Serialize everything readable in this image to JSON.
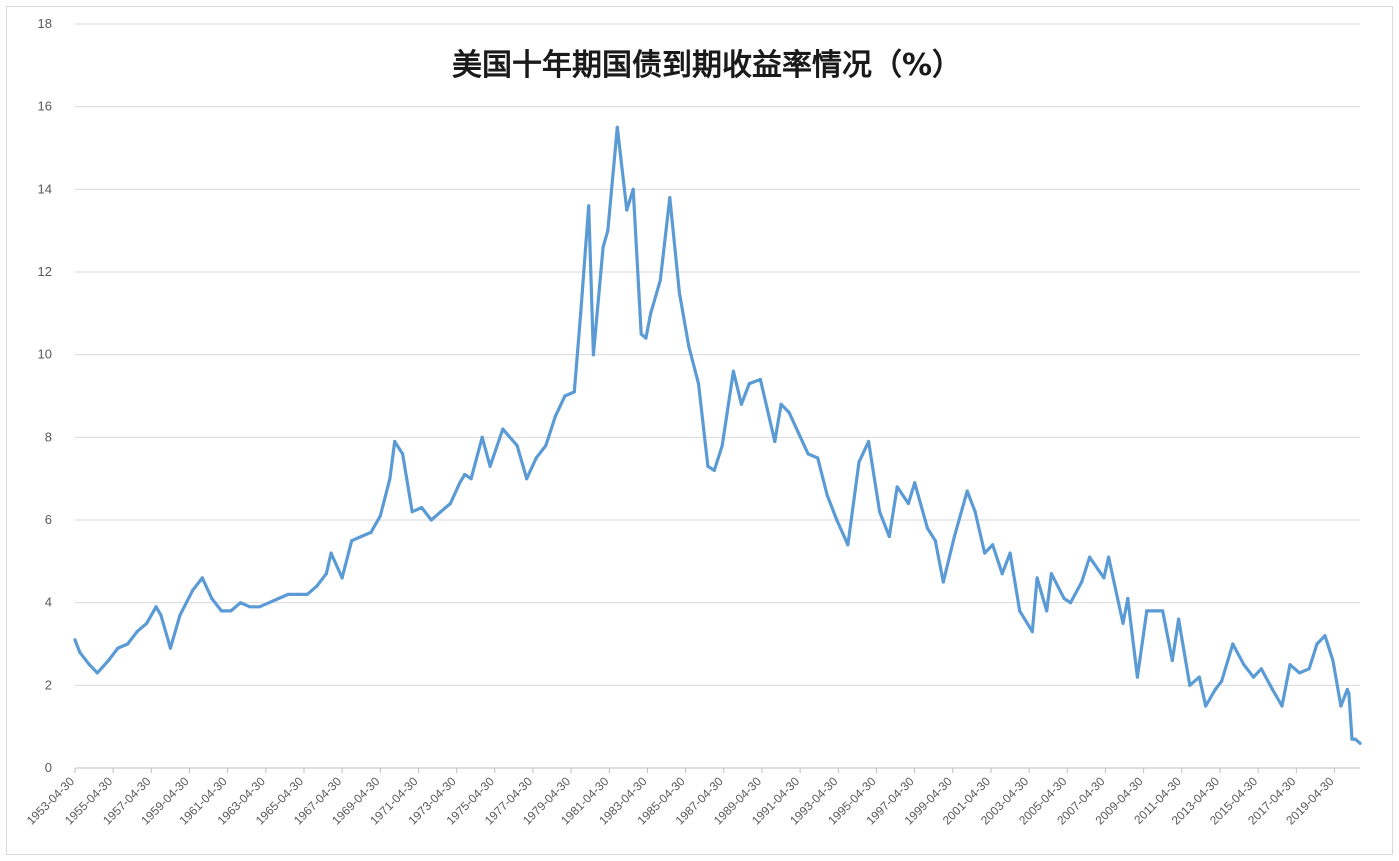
{
  "chart_data": {
    "type": "line",
    "title": "美国十年期国债到期收益率情况（%）",
    "xlabel": "",
    "ylabel": "",
    "ylim": [
      0,
      18
    ],
    "yticks": [
      0,
      2,
      4,
      6,
      8,
      10,
      12,
      14,
      16,
      18
    ],
    "grid": true,
    "legend": "none",
    "line_color": "#5b9bd5",
    "x_tick_labels": [
      "1953-04-30",
      "1955-04-30",
      "1957-04-30",
      "1959-04-30",
      "1961-04-30",
      "1963-04-30",
      "1965-04-30",
      "1967-04-30",
      "1969-04-30",
      "1971-04-30",
      "1973-04-30",
      "1975-04-30",
      "1977-04-30",
      "1979-04-30",
      "1981-04-30",
      "1983-04-30",
      "1985-04-30",
      "1987-04-30",
      "1989-04-30",
      "1991-04-30",
      "1993-04-30",
      "1995-04-30",
      "1997-04-30",
      "1999-04-30",
      "2001-04-30",
      "2003-04-30",
      "2005-04-30",
      "2007-04-30",
      "2009-04-30",
      "2011-04-30",
      "2013-04-30",
      "2015-04-30",
      "2017-04-30",
      "2019-04-30"
    ],
    "x_range": [
      "1953-04-30",
      "2020-08-31"
    ],
    "series": [
      {
        "x": [
          "1953-04-30",
          "1953-07-31",
          "1954-01-31",
          "1954-06-30",
          "1955-01-31",
          "1955-07-31",
          "1956-01-31",
          "1956-07-31",
          "1957-01-31",
          "1957-07-31",
          "1957-10-31",
          "1958-04-30",
          "1958-10-31",
          "1959-06-30",
          "1959-12-31",
          "1960-06-30",
          "1960-12-31",
          "1961-06-30",
          "1961-12-31",
          "1962-06-30",
          "1962-12-31",
          "1963-06-30",
          "1963-12-31",
          "1964-06-30",
          "1964-12-31",
          "1965-06-30",
          "1965-12-31",
          "1966-06-30",
          "1966-09-30",
          "1967-04-30",
          "1967-10-31",
          "1968-04-30",
          "1968-10-31",
          "1969-04-30",
          "1969-10-31",
          "1970-01-31",
          "1970-06-30",
          "1970-12-31",
          "1971-06-30",
          "1971-12-31",
          "1972-06-30",
          "1972-12-31",
          "1973-06-30",
          "1973-09-30",
          "1974-01-31",
          "1974-08-31",
          "1975-01-31",
          "1975-09-30",
          "1976-06-30",
          "1976-12-31",
          "1977-06-30",
          "1977-12-31",
          "1978-06-30",
          "1978-12-31",
          "1979-06-30",
          "1979-10-31",
          "1980-03-31",
          "1980-06-30",
          "1980-12-31",
          "1981-03-31",
          "1981-09-30",
          "1982-03-31",
          "1982-07-31",
          "1982-12-31",
          "1983-03-31",
          "1983-06-30",
          "1983-12-31",
          "1984-06-30",
          "1984-12-31",
          "1985-06-30",
          "1985-12-31",
          "1986-06-30",
          "1986-10-31",
          "1987-03-31",
          "1987-10-31",
          "1988-03-31",
          "1988-08-31",
          "1989-03-31",
          "1989-12-31",
          "1990-04-30",
          "1990-09-30",
          "1991-03-31",
          "1991-09-30",
          "1992-03-31",
          "1992-09-30",
          "1993-03-31",
          "1993-10-31",
          "1994-05-31",
          "1994-11-30",
          "1995-06-30",
          "1995-12-31",
          "1996-05-31",
          "1996-12-31",
          "1997-04-30",
          "1997-12-31",
          "1998-05-31",
          "1998-10-31",
          "1999-05-31",
          "2000-01-31",
          "2000-06-30",
          "2000-12-31",
          "2001-05-31",
          "2001-11-30",
          "2002-04-30",
          "2002-10-31",
          "2003-06-30",
          "2003-09-30",
          "2004-03-31",
          "2004-06-30",
          "2005-02-28",
          "2005-06-30",
          "2006-01-31",
          "2006-06-30",
          "2007-03-31",
          "2007-06-30",
          "2008-03-31",
          "2008-06-30",
          "2008-12-31",
          "2009-06-30",
          "2009-12-31",
          "2010-04-30",
          "2010-10-31",
          "2011-02-28",
          "2011-09-30",
          "2012-03-31",
          "2012-07-31",
          "2013-01-31",
          "2013-05-31",
          "2013-12-31",
          "2014-07-31",
          "2015-01-31",
          "2015-06-30",
          "2016-01-31",
          "2016-07-31",
          "2016-12-31",
          "2017-06-30",
          "2017-12-31",
          "2018-05-31",
          "2018-10-31",
          "2019-03-31",
          "2019-08-31",
          "2019-12-31",
          "2020-01-31",
          "2020-03-31",
          "2020-05-31",
          "2020-08-31"
        ],
        "values": [
          3.1,
          2.8,
          2.5,
          2.3,
          2.6,
          2.9,
          3.0,
          3.3,
          3.5,
          3.9,
          3.7,
          2.9,
          3.7,
          4.3,
          4.6,
          4.1,
          3.8,
          3.8,
          4.0,
          3.9,
          3.9,
          4.0,
          4.1,
          4.2,
          4.2,
          4.2,
          4.4,
          4.7,
          5.2,
          4.6,
          5.5,
          5.6,
          5.7,
          6.1,
          7.0,
          7.9,
          7.6,
          6.2,
          6.3,
          6.0,
          6.2,
          6.4,
          6.9,
          7.1,
          7.0,
          8.0,
          7.3,
          8.2,
          7.8,
          7.0,
          7.5,
          7.8,
          8.5,
          9.0,
          9.1,
          11.0,
          13.6,
          10.0,
          12.6,
          13.0,
          15.5,
          13.5,
          14.0,
          10.5,
          10.4,
          11.0,
          11.8,
          13.8,
          11.5,
          10.2,
          9.3,
          7.3,
          7.2,
          7.8,
          9.6,
          8.8,
          9.3,
          9.4,
          7.9,
          8.8,
          8.6,
          8.1,
          7.6,
          7.5,
          6.6,
          6.0,
          5.4,
          7.4,
          7.9,
          6.2,
          5.6,
          6.8,
          6.4,
          6.9,
          5.8,
          5.5,
          4.5,
          5.6,
          6.7,
          6.2,
          5.2,
          5.4,
          4.7,
          5.2,
          3.8,
          3.3,
          4.6,
          3.8,
          4.7,
          4.1,
          4.0,
          4.5,
          5.1,
          4.6,
          5.1,
          3.5,
          4.1,
          2.2,
          3.8,
          3.8,
          3.8,
          2.6,
          3.6,
          2.0,
          2.2,
          1.5,
          1.9,
          2.1,
          3.0,
          2.5,
          2.2,
          2.4,
          1.9,
          1.5,
          2.5,
          2.3,
          2.4,
          3.0,
          3.2,
          2.6,
          1.5,
          1.9,
          1.8,
          0.7,
          0.7,
          0.6
        ]
      }
    ]
  }
}
